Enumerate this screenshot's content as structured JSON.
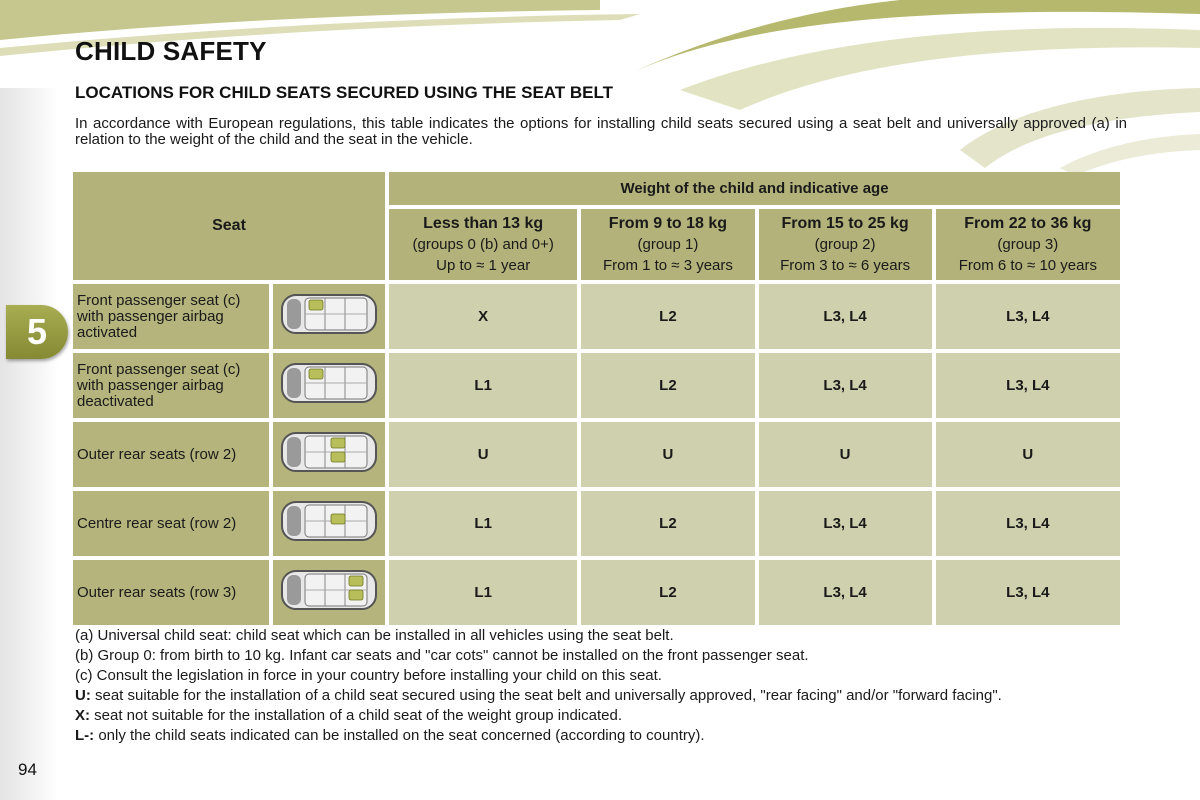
{
  "page": {
    "title": "CHILD SAFETY",
    "chapter_number": "5",
    "page_number": "94"
  },
  "section": {
    "title": "LOCATIONS FOR CHILD SEATS SECURED USING THE SEAT BELT",
    "intro": "In accordance with European regulations, this table indicates the options for installing child seats secured using a seat belt and universally approved (a) in relation to the weight of the child and the seat in the vehicle."
  },
  "table": {
    "seat_header": "Seat",
    "weight_header": "Weight of the child and indicative age",
    "groups": [
      {
        "title": "Less than 13 kg",
        "group": "(groups 0 (b) and 0+)",
        "age": "Up to ≈ 1 year"
      },
      {
        "title": "From 9 to 18 kg",
        "group": "(group 1)",
        "age": "From 1 to ≈ 3 years"
      },
      {
        "title": "From 15 to 25 kg",
        "group": "(group 2)",
        "age": "From 3 to ≈ 6 years"
      },
      {
        "title": "From 22 to 36 kg",
        "group": "(group 3)",
        "age": "From 6 to ≈ 10 years"
      }
    ],
    "rows": [
      {
        "seat": "Front passenger seat (c) with passenger airbag activated",
        "icon": "car-top-view-front-passenger-icon",
        "values": [
          "X",
          "L2",
          "L3, L4",
          "L3, L4"
        ]
      },
      {
        "seat": "Front passenger seat (c) with passenger airbag deactivated",
        "icon": "car-top-view-front-passenger-icon",
        "values": [
          "L1",
          "L2",
          "L3, L4",
          "L3, L4"
        ]
      },
      {
        "seat": "Outer rear seats (row 2)",
        "icon": "car-top-view-rear-outer-icon",
        "values": [
          "U",
          "U",
          "U",
          "U"
        ]
      },
      {
        "seat": "Centre rear seat (row 2)",
        "icon": "car-top-view-rear-centre-icon",
        "values": [
          "L1",
          "L2",
          "L3, L4",
          "L3, L4"
        ]
      },
      {
        "seat": "Outer rear seats (row 3)",
        "icon": "car-top-view-row3-icon",
        "values": [
          "L1",
          "L2",
          "L3, L4",
          "L3, L4"
        ]
      }
    ]
  },
  "footnotes": {
    "a": "(a) Universal child seat: child seat which can be installed in all vehicles using the seat belt.",
    "b": "(b) Group 0: from birth to 10 kg. Infant car seats and \"car cots\" cannot be installed on the front passenger seat.",
    "c": "(c) Consult the legislation in force in your country before installing your child on this seat.",
    "u_key": "U:",
    "u_text": " seat suitable for the installation of a child seat secured using the seat belt and universally approved, \"rear facing\" and/or \"forward facing\".",
    "x_key": "X:",
    "x_text": " seat not suitable for the installation of a child seat of the weight group indicated.",
    "l_key": "L-:",
    "l_text": " only the child seats indicated can be installed on the seat concerned (according to country)."
  },
  "colors": {
    "accent_olive": "#b2b27a",
    "cell_light": "#cfd0ad",
    "tab_green": "#959a3e"
  }
}
